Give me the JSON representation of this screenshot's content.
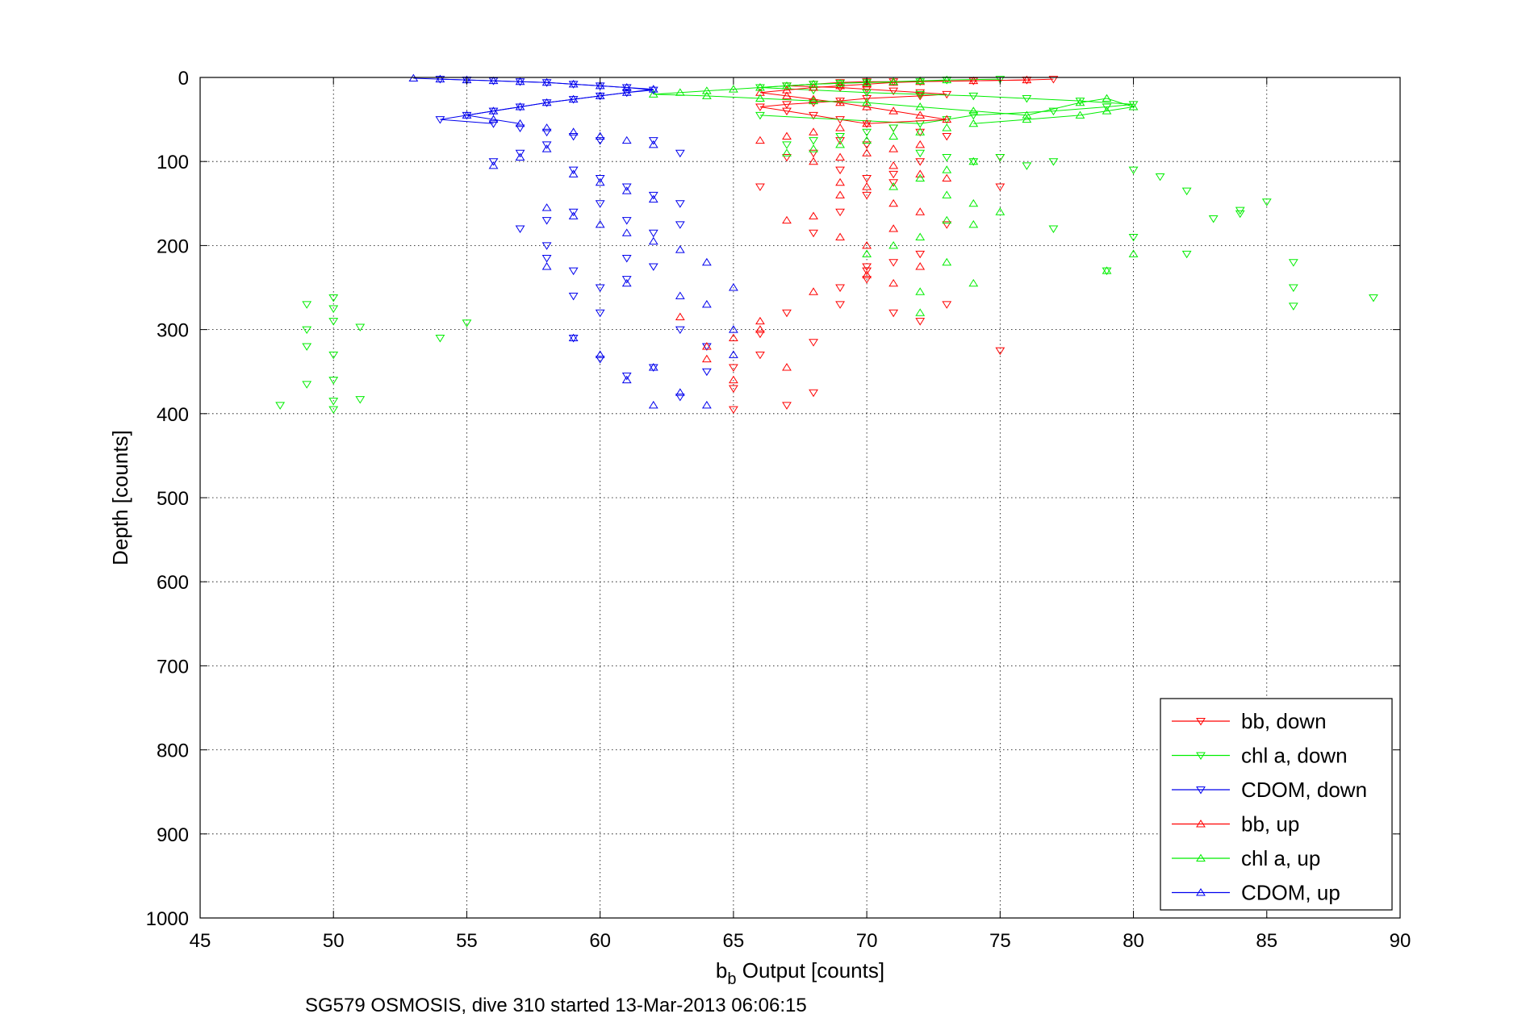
{
  "chart_data": {
    "type": "scatter",
    "xlabel_main": "b",
    "xlabel_sub": "b",
    "xlabel_rest": " Output [counts]",
    "ylabel": "Depth [counts]",
    "caption": "SG579 OSMOSIS, dive 310 started 13-Mar-2013 06:06:15",
    "xlim": [
      45,
      90
    ],
    "ylim": [
      0,
      1000
    ],
    "y_reversed": true,
    "grid": true,
    "legend_position": "bottom-right",
    "x_ticks": [
      45,
      50,
      55,
      60,
      65,
      70,
      75,
      80,
      85,
      90
    ],
    "y_ticks": [
      0,
      100,
      200,
      300,
      400,
      500,
      600,
      700,
      800,
      900,
      1000
    ],
    "series": [
      {
        "name": "bb, down",
        "color": "#ff0000",
        "marker": "triangle-down",
        "x": [
          77,
          76,
          74,
          71,
          70,
          69,
          68,
          67,
          69,
          70,
          71,
          72,
          73,
          72,
          70,
          69,
          68,
          67,
          66,
          67,
          68,
          69,
          70,
          71,
          72,
          73,
          69,
          70,
          68,
          67,
          69,
          71,
          70,
          66,
          75,
          75,
          72,
          71,
          70,
          69,
          68,
          72,
          71,
          70,
          69,
          70,
          73,
          67,
          66,
          66,
          65,
          65,
          68,
          67,
          65,
          68,
          69,
          70,
          71,
          72,
          75,
          73
        ],
        "y": [
          2,
          3,
          4,
          5,
          5,
          6,
          8,
          10,
          12,
          14,
          16,
          18,
          20,
          22,
          25,
          28,
          30,
          32,
          35,
          40,
          45,
          50,
          55,
          60,
          65,
          70,
          75,
          80,
          90,
          95,
          110,
          115,
          120,
          130,
          130,
          95,
          100,
          125,
          140,
          160,
          185,
          210,
          220,
          240,
          250,
          225,
          270,
          280,
          305,
          330,
          345,
          370,
          375,
          390,
          395,
          315,
          270,
          230,
          280,
          290,
          325,
          175
        ]
      },
      {
        "name": "chl a, down",
        "color": "#00ee00",
        "marker": "triangle-down",
        "x": [
          75,
          73,
          72,
          70,
          69,
          68,
          67,
          66,
          68,
          70,
          72,
          74,
          76,
          78,
          80,
          79,
          77,
          74,
          73,
          72,
          71,
          70,
          69,
          68,
          67,
          66,
          72,
          73,
          74,
          75,
          76,
          77,
          80,
          81,
          82,
          83,
          84,
          85,
          84,
          86,
          86,
          86,
          89,
          80,
          82,
          77,
          79,
          49,
          49,
          49,
          50,
          50,
          50,
          50,
          50,
          51,
          51,
          54,
          55,
          49,
          50,
          50,
          48
        ],
        "y": [
          2,
          3,
          5,
          6,
          7,
          8,
          10,
          12,
          15,
          18,
          20,
          22,
          25,
          28,
          32,
          35,
          40,
          45,
          50,
          55,
          60,
          65,
          70,
          75,
          80,
          45,
          90,
          95,
          100,
          95,
          105,
          100,
          110,
          118,
          135,
          168,
          158,
          148,
          162,
          220,
          250,
          272,
          262,
          190,
          210,
          180,
          230,
          270,
          300,
          320,
          262,
          275,
          290,
          330,
          360,
          297,
          383,
          310,
          292,
          365,
          395,
          385,
          390
        ]
      },
      {
        "name": "CDOM, down",
        "color": "#0000ee",
        "marker": "triangle-down",
        "x": [
          54,
          55,
          56,
          57,
          58,
          59,
          60,
          61,
          62,
          61,
          60,
          59,
          58,
          57,
          56,
          55,
          54,
          56,
          57,
          58,
          59,
          60,
          58,
          57,
          56,
          59,
          60,
          61,
          62,
          63,
          59,
          58,
          57,
          58,
          59,
          60,
          61,
          60,
          59,
          58,
          61,
          62,
          62,
          63,
          63,
          64,
          64,
          61,
          60,
          59,
          62,
          63,
          60,
          61,
          62,
          63
        ],
        "y": [
          2,
          3,
          4,
          5,
          6,
          8,
          10,
          12,
          15,
          18,
          22,
          26,
          30,
          35,
          40,
          45,
          50,
          55,
          60,
          65,
          70,
          75,
          80,
          90,
          100,
          110,
          120,
          130,
          140,
          150,
          160,
          170,
          180,
          200,
          230,
          250,
          240,
          280,
          260,
          215,
          215,
          225,
          185,
          175,
          300,
          320,
          350,
          355,
          335,
          310,
          345,
          380,
          150,
          170,
          75,
          90
        ]
      },
      {
        "name": "bb, up",
        "color": "#ff0000",
        "marker": "triangle-up",
        "x": [
          76,
          74,
          72,
          71,
          70,
          69,
          68,
          67,
          66,
          67,
          68,
          69,
          70,
          71,
          72,
          73,
          70,
          69,
          68,
          67,
          66,
          72,
          71,
          70,
          69,
          68,
          71,
          72,
          73,
          70,
          69,
          71,
          72,
          68,
          67,
          66,
          65,
          65,
          66,
          67,
          68,
          69,
          70,
          70,
          71,
          64,
          64,
          63,
          72,
          71,
          69
        ],
        "y": [
          3,
          4,
          5,
          6,
          8,
          10,
          12,
          15,
          18,
          22,
          26,
          30,
          35,
          40,
          45,
          50,
          55,
          60,
          65,
          70,
          75,
          80,
          85,
          90,
          95,
          100,
          105,
          115,
          120,
          130,
          140,
          150,
          160,
          165,
          170,
          290,
          310,
          360,
          300,
          345,
          255,
          125,
          200,
          235,
          245,
          320,
          335,
          285,
          225,
          180,
          190
        ]
      },
      {
        "name": "chl a, up",
        "color": "#00ee00",
        "marker": "triangle-up",
        "x": [
          73,
          72,
          71,
          70,
          69,
          68,
          67,
          66,
          65,
          64,
          63,
          62,
          64,
          66,
          68,
          70,
          72,
          74,
          76,
          78,
          79,
          80,
          79,
          78,
          76,
          74,
          73,
          72,
          71,
          70,
          69,
          68,
          67,
          74,
          73,
          72,
          71,
          73,
          74,
          75,
          73,
          72,
          71,
          70,
          73,
          74,
          79,
          80,
          72,
          72,
          74
        ],
        "y": [
          3,
          4,
          5,
          6,
          7,
          8,
          10,
          12,
          14,
          16,
          18,
          20,
          22,
          25,
          28,
          30,
          35,
          40,
          45,
          30,
          25,
          35,
          40,
          45,
          50,
          55,
          60,
          65,
          70,
          75,
          80,
          85,
          90,
          100,
          110,
          120,
          130,
          140,
          150,
          160,
          170,
          190,
          200,
          210,
          220,
          245,
          230,
          210,
          280,
          255,
          175
        ]
      },
      {
        "name": "CDOM, up",
        "color": "#0000ee",
        "marker": "triangle-up",
        "x": [
          53,
          54,
          55,
          56,
          57,
          58,
          59,
          60,
          61,
          62,
          61,
          60,
          59,
          58,
          57,
          56,
          55,
          56,
          57,
          58,
          59,
          60,
          61,
          62,
          58,
          57,
          56,
          59,
          60,
          61,
          62,
          58,
          59,
          60,
          61,
          62,
          63,
          64,
          65,
          65,
          64,
          63,
          62,
          61,
          60,
          59,
          58,
          63,
          64,
          65,
          61,
          62
        ],
        "y": [
          1,
          2,
          3,
          4,
          5,
          6,
          8,
          10,
          12,
          14,
          18,
          22,
          26,
          30,
          35,
          40,
          45,
          50,
          55,
          60,
          65,
          70,
          75,
          80,
          85,
          95,
          105,
          115,
          125,
          135,
          145,
          155,
          165,
          175,
          185,
          195,
          205,
          220,
          250,
          300,
          390,
          375,
          390,
          360,
          330,
          310,
          225,
          260,
          270,
          330,
          245,
          345
        ]
      }
    ]
  }
}
